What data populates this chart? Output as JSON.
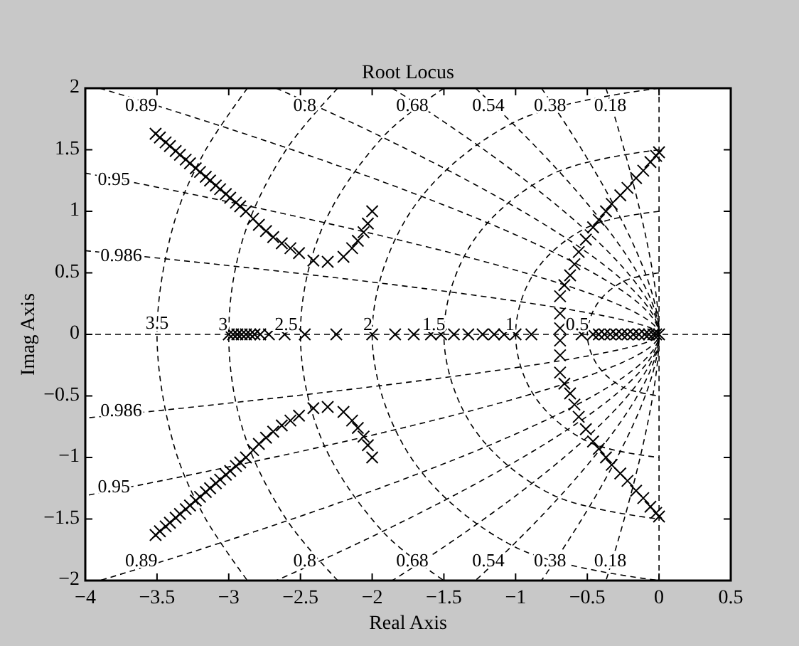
{
  "chart_data": {
    "type": "scatter",
    "title": "Root Locus",
    "xlabel": "Real Axis",
    "ylabel": "Imag Axis",
    "xlim": [
      -4,
      0.5
    ],
    "ylim": [
      -2,
      2
    ],
    "xticks": [
      -4,
      -3.5,
      -3,
      -2.5,
      -2,
      -1.5,
      -1,
      -0.5,
      0,
      0.5
    ],
    "yticks": [
      -2,
      -1.5,
      -1,
      -0.5,
      0,
      0.5,
      1,
      1.5,
      2
    ],
    "line_style": "dashed",
    "grid": false,
    "series": [
      {
        "type": "line",
        "color": "#000000",
        "x": [
          -4,
          0.5
        ],
        "values": [
          0,
          0
        ]
      },
      {
        "type": "line",
        "color": "#000000",
        "x": [
          0,
          0
        ],
        "values": [
          -2,
          2
        ]
      },
      {
        "type": "line",
        "color": "#000000",
        "x": [
          -0.37,
          0,
          -0.37
        ],
        "values": [
          2,
          0,
          -2
        ]
      },
      {
        "type": "line",
        "color": "#000000",
        "x": [
          -0.82,
          0,
          -0.82
        ],
        "values": [
          2,
          0,
          -2
        ]
      },
      {
        "type": "line",
        "color": "#000000",
        "x": [
          -1.28,
          0,
          -1.28
        ],
        "values": [
          2,
          0,
          -2
        ]
      },
      {
        "type": "line",
        "color": "#000000",
        "x": [
          -1.86,
          0,
          -1.86
        ],
        "values": [
          2,
          0,
          -2
        ]
      },
      {
        "type": "line",
        "color": "#000000",
        "x": [
          -2.67,
          0,
          -2.67
        ],
        "values": [
          2,
          0,
          -2
        ]
      },
      {
        "type": "line",
        "color": "#000000",
        "x": [
          -3.9,
          0,
          -3.9
        ],
        "values": [
          2,
          0,
          -2
        ]
      },
      {
        "type": "line",
        "color": "#000000",
        "x": [
          -4,
          0,
          -4
        ],
        "values": [
          1.31,
          0,
          -1.31
        ]
      },
      {
        "type": "line",
        "color": "#000000",
        "x": [
          -4,
          0,
          -4
        ],
        "values": [
          0.68,
          0,
          -0.68
        ]
      },
      {
        "type": "line",
        "color": "#000000",
        "x": [
          0,
          -0.25,
          -0.43,
          -0.5,
          -0.43,
          -0.25,
          0
        ],
        "values": [
          0.5,
          0.43,
          0.25,
          0,
          -0.25,
          -0.43,
          -0.5
        ]
      },
      {
        "type": "line",
        "color": "#000000",
        "x": [
          0,
          -0.5,
          -0.87,
          -1,
          -0.87,
          -0.5,
          0
        ],
        "values": [
          1,
          0.87,
          0.5,
          0,
          -0.5,
          -0.87,
          -1
        ]
      },
      {
        "type": "line",
        "color": "#000000",
        "x": [
          0,
          -0.75,
          -1.3,
          -1.5,
          -1.3,
          -0.75,
          0
        ],
        "values": [
          1.5,
          1.3,
          0.75,
          0,
          -0.75,
          -1.3,
          -1.5
        ]
      },
      {
        "type": "line",
        "color": "#000000",
        "x": [
          0,
          -1,
          -1.73,
          -2,
          -1.73,
          -1,
          0
        ],
        "values": [
          2,
          1.73,
          1,
          0,
          -1,
          -1.73,
          -2
        ]
      },
      {
        "type": "line",
        "color": "#000000",
        "x": [
          -1.5,
          -1.92,
          -2.35,
          -2.5,
          -2.35,
          -1.92,
          -1.5
        ],
        "values": [
          2,
          1.61,
          0.86,
          0,
          -0.86,
          -1.61,
          -2
        ]
      },
      {
        "type": "line",
        "color": "#000000",
        "x": [
          -2.24,
          -2.6,
          -2.9,
          -3,
          -2.9,
          -2.6,
          -2.24
        ],
        "values": [
          2,
          1.5,
          0.78,
          0,
          -0.78,
          -1.5,
          -2
        ]
      },
      {
        "type": "line",
        "color": "#000000",
        "x": [
          -2.87,
          -3.17,
          -3.38,
          -3.5,
          -3.38,
          -3.17,
          -2.87
        ],
        "values": [
          2,
          1.48,
          0.91,
          0,
          -0.91,
          -1.48,
          -2
        ]
      },
      {
        "color": "#000000",
        "marker": "cross",
        "x": [
          -3.51,
          -3.48,
          -3.44,
          -3.41,
          -3.37,
          -3.34,
          -3.3,
          -3.27,
          -3.23,
          -3.2,
          -3.16,
          -3.13,
          -3.09,
          -3.06,
          -3.02,
          -2.99,
          -2.95,
          -2.92,
          -2.88,
          -2.83,
          -2.79,
          -2.74,
          -2.69,
          -2.63,
          -2.57,
          -2.51,
          -2.41,
          -2.31,
          -2.2,
          -2.14,
          -2.1,
          -2.06,
          -2.03,
          -2
        ],
        "values": [
          1.63,
          1.6,
          1.56,
          1.53,
          1.49,
          1.46,
          1.42,
          1.39,
          1.35,
          1.32,
          1.28,
          1.25,
          1.21,
          1.18,
          1.14,
          1.11,
          1.07,
          1.04,
          1,
          0.94,
          0.89,
          0.84,
          0.79,
          0.74,
          0.7,
          0.66,
          0.6,
          0.59,
          0.63,
          0.7,
          0.76,
          0.83,
          0.9,
          1
        ]
      },
      {
        "color": "#000000",
        "marker": "cross",
        "x": [
          -3.51,
          -3.48,
          -3.44,
          -3.41,
          -3.37,
          -3.34,
          -3.3,
          -3.27,
          -3.23,
          -3.2,
          -3.16,
          -3.13,
          -3.09,
          -3.06,
          -3.02,
          -2.99,
          -2.95,
          -2.92,
          -2.88,
          -2.83,
          -2.79,
          -2.74,
          -2.69,
          -2.63,
          -2.57,
          -2.51,
          -2.41,
          -2.31,
          -2.2,
          -2.14,
          -2.1,
          -2.06,
          -2.03,
          -2
        ],
        "values": [
          -1.63,
          -1.6,
          -1.56,
          -1.53,
          -1.49,
          -1.46,
          -1.42,
          -1.39,
          -1.35,
          -1.32,
          -1.28,
          -1.25,
          -1.21,
          -1.18,
          -1.14,
          -1.11,
          -1.07,
          -1.04,
          -1,
          -0.94,
          -0.89,
          -0.84,
          -0.79,
          -0.74,
          -0.7,
          -0.66,
          -0.6,
          -0.59,
          -0.63,
          -0.7,
          -0.76,
          -0.83,
          -0.9,
          -1
        ]
      },
      {
        "color": "#000000",
        "marker": "cross",
        "x": [
          -3,
          -2.97,
          -2.94,
          -2.91,
          -2.88,
          -2.85,
          -2.82,
          -2.78,
          -2.72,
          -2.61,
          -2.47,
          -2.25,
          -2,
          -1.84,
          -1.71,
          -1.59,
          -1.52,
          -1.43,
          -1.33,
          -1.23,
          -1.15,
          -1.08,
          -1,
          -0.89,
          -0.54,
          -0.46,
          -0.42,
          -0.38,
          -0.34,
          -0.3,
          -0.26,
          -0.22,
          -0.18,
          -0.14,
          -0.1,
          -0.07,
          -0.04,
          -0.02,
          0
        ],
        "values": [
          0,
          0,
          0,
          0,
          0,
          0,
          0,
          0,
          0,
          0,
          0,
          0,
          0,
          0,
          0,
          0,
          0,
          0,
          0,
          0,
          0,
          0,
          0,
          0,
          0,
          0,
          0,
          0,
          0,
          0,
          0,
          0,
          0,
          0,
          0,
          0,
          0,
          0,
          0
        ]
      },
      {
        "color": "#000000",
        "marker": "cross",
        "x": [
          -0.69,
          -0.69,
          -0.69,
          -0.66,
          -0.62,
          -0.59,
          -0.56,
          -0.51,
          -0.46,
          -0.42,
          -0.37,
          -0.33,
          -0.27,
          -0.22,
          -0.16,
          -0.11,
          -0.06,
          -0.02,
          0
        ],
        "values": [
          0.05,
          0.17,
          0.31,
          0.4,
          0.48,
          0.57,
          0.67,
          0.77,
          0.87,
          0.93,
          1,
          1.06,
          1.13,
          1.19,
          1.27,
          1.33,
          1.4,
          1.45,
          1.48
        ]
      },
      {
        "color": "#000000",
        "marker": "cross",
        "x": [
          -0.69,
          -0.69,
          -0.69,
          -0.66,
          -0.62,
          -0.59,
          -0.56,
          -0.51,
          -0.46,
          -0.42,
          -0.37,
          -0.33,
          -0.27,
          -0.22,
          -0.16,
          -0.11,
          -0.06,
          -0.02,
          0
        ],
        "values": [
          -0.05,
          -0.17,
          -0.31,
          -0.4,
          -0.48,
          -0.57,
          -0.67,
          -0.77,
          -0.87,
          -0.93,
          -1,
          -1.06,
          -1.13,
          -1.19,
          -1.27,
          -1.33,
          -1.4,
          -1.45,
          -1.48
        ]
      }
    ],
    "annotations": [
      {
        "text": "0.89",
        "x": -3.61,
        "y": 1.85
      },
      {
        "text": "0.8",
        "x": -2.47,
        "y": 1.85
      },
      {
        "text": "0.68",
        "x": -1.72,
        "y": 1.85
      },
      {
        "text": "0.54",
        "x": -1.19,
        "y": 1.85
      },
      {
        "text": "0.38",
        "x": -0.76,
        "y": 1.85
      },
      {
        "text": "0.18",
        "x": -0.34,
        "y": 1.85
      },
      {
        "text": "0.95",
        "x": -3.8,
        "y": 1.25
      },
      {
        "text": "0.986",
        "x": -3.75,
        "y": 0.63
      },
      {
        "text": "0.986",
        "x": -3.75,
        "y": -0.63
      },
      {
        "text": "0.95",
        "x": -3.8,
        "y": -1.25
      },
      {
        "text": "0.89",
        "x": -3.61,
        "y": -1.85
      },
      {
        "text": "0.8",
        "x": -2.47,
        "y": -1.85
      },
      {
        "text": "0.68",
        "x": -1.72,
        "y": -1.85
      },
      {
        "text": "0.54",
        "x": -1.19,
        "y": -1.85
      },
      {
        "text": "0.38",
        "x": -0.76,
        "y": -1.85
      },
      {
        "text": "0.18",
        "x": -0.34,
        "y": -1.85
      },
      {
        "text": "3.5",
        "x": -3.5,
        "y": 0.08
      },
      {
        "text": "3",
        "x": -3.04,
        "y": 0.07
      },
      {
        "text": "2.5",
        "x": -2.6,
        "y": 0.07
      },
      {
        "text": "2",
        "x": -2.03,
        "y": 0.07
      },
      {
        "text": "1.5",
        "x": -1.57,
        "y": 0.07
      },
      {
        "text": "1",
        "x": -1.04,
        "y": 0.07
      },
      {
        "text": "0.5",
        "x": -0.57,
        "y": 0.07
      }
    ]
  }
}
